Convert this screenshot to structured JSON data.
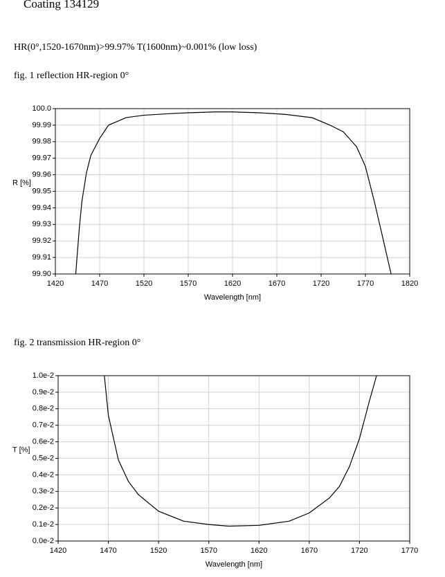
{
  "header": {
    "title": "Coating  134129",
    "spec": "HR(0°,1520-1670nm)>99.97%  T(1600nm)~0.001%  (low loss)"
  },
  "chart_data": [
    {
      "type": "line",
      "title": "fig. 1 reflection HR-region  0°",
      "x_label": "Wavelength [nm]",
      "y_label": "R [%]",
      "x": [
        1443,
        1447,
        1450,
        1455,
        1460,
        1470,
        1480,
        1500,
        1520,
        1550,
        1570,
        1600,
        1620,
        1650,
        1680,
        1710,
        1730,
        1745,
        1760,
        1770,
        1780,
        1790,
        1799
      ],
      "series": [
        {
          "name": "R",
          "color": "#000000",
          "values": [
            99.9,
            99.9275,
            99.944,
            99.961,
            99.9716,
            99.982,
            99.99,
            99.9946,
            99.996,
            99.997,
            99.9975,
            99.998,
            99.998,
            99.9975,
            99.9965,
            99.9945,
            99.99,
            99.986,
            99.977,
            99.965,
            99.944,
            99.921,
            99.9
          ]
        }
      ],
      "xlim": [
        1420,
        1820
      ],
      "xticks": [
        1420,
        1470,
        1520,
        1570,
        1620,
        1670,
        1720,
        1770,
        1820
      ],
      "ylim": [
        99.9,
        100.0
      ],
      "yticks": [
        {
          "value": 99.9,
          "label": "99.90"
        },
        99.91,
        99.92,
        99.93,
        99.94,
        99.95,
        99.96,
        99.97,
        99.98,
        99.99,
        {
          "value": 100.0,
          "label": "100.0"
        }
      ],
      "grid": true
    },
    {
      "type": "line",
      "title": "fig. 2 transmission HR-region  0°",
      "x_label": "Wavelength [nm]",
      "y_label": "T [%]",
      "x": [
        1466,
        1470,
        1480,
        1490,
        1500,
        1520,
        1545,
        1570,
        1590,
        1620,
        1650,
        1670,
        1690,
        1700,
        1710,
        1720,
        1730,
        1737
      ],
      "series": [
        {
          "name": "T",
          "color": "#000000",
          "values": [
            0.01,
            0.0076,
            0.0049,
            0.0036,
            0.0028,
            0.0018,
            0.0012,
            0.001,
            0.0009,
            0.00095,
            0.0012,
            0.0017,
            0.0026,
            0.0033,
            0.0045,
            0.0062,
            0.0085,
            0.01
          ]
        }
      ],
      "xlim": [
        1420,
        1770
      ],
      "xticks": [
        1420,
        1470,
        1520,
        1570,
        1620,
        1670,
        1720,
        1770
      ],
      "ylim": [
        0,
        0.01
      ],
      "yticks": [
        {
          "value": 0,
          "label": "0.0e-2"
        },
        {
          "value": 0.001,
          "label": "0.1e-2"
        },
        {
          "value": 0.002,
          "label": "0.2e-2"
        },
        {
          "value": 0.003,
          "label": "0.3e-2"
        },
        {
          "value": 0.004,
          "label": "0.4e-2"
        },
        {
          "value": 0.005,
          "label": "0.5e-2"
        },
        {
          "value": 0.006,
          "label": "0.6e-2"
        },
        {
          "value": 0.007,
          "label": "0.7e-2"
        },
        {
          "value": 0.008,
          "label": "0.8e-2"
        },
        {
          "value": 0.009,
          "label": "0.9e-2"
        },
        {
          "value": 0.01,
          "label": "1.0e-2"
        }
      ],
      "grid": true
    }
  ]
}
